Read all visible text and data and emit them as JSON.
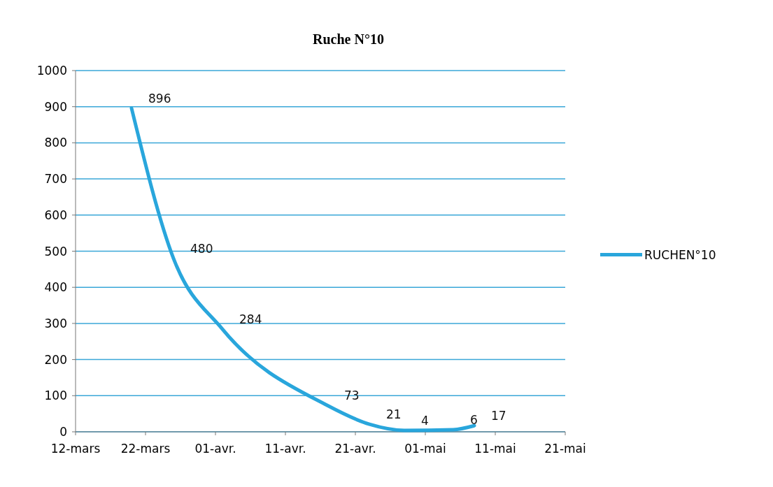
{
  "chart_data": {
    "type": "line",
    "title": "Ruche N°10",
    "x": [
      "--03-20",
      "--03-26",
      "--04-02",
      "--04-17",
      "--04-23",
      "--04-28",
      "--05-05",
      "--05-08"
    ],
    "series": [
      {
        "name": "RUCHEN°10",
        "color": "#29a6dc",
        "values": [
          896,
          480,
          284,
          73,
          21,
          4,
          6,
          17
        ]
      }
    ],
    "xlim": [
      "--03-12",
      "--05-21"
    ],
    "xticks": [
      {
        "value": "--03-12",
        "label": "12-mars"
      },
      {
        "value": "--03-22",
        "label": "22-mars"
      },
      {
        "value": "--04-01",
        "label": "01-avr."
      },
      {
        "value": "--04-11",
        "label": "11-avr."
      },
      {
        "value": "--04-21",
        "label": "21-avr."
      },
      {
        "value": "--05-01",
        "label": "01-mai"
      },
      {
        "value": "--05-11",
        "label": "11-mai"
      },
      {
        "value": "--05-21",
        "label": "21-mai"
      }
    ],
    "ylim": [
      0,
      1000
    ],
    "yticks": [
      0,
      100,
      200,
      300,
      400,
      500,
      600,
      700,
      800,
      900,
      1000
    ],
    "grid": "y",
    "legend": "right",
    "data_labels": true,
    "marker": "none",
    "line_style": "solid"
  }
}
